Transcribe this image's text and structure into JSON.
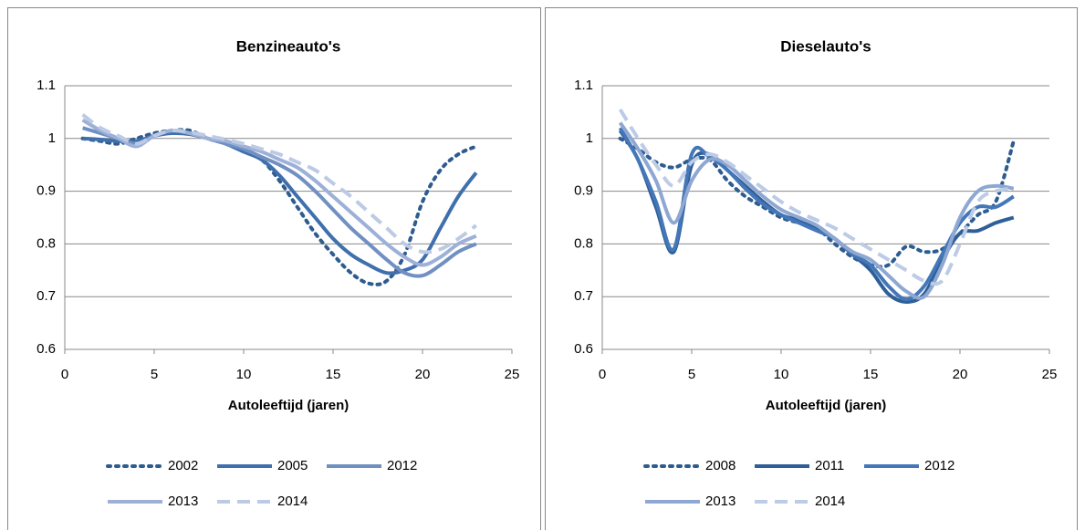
{
  "chart_data": [
    {
      "type": "line",
      "title": "Benzineauto's",
      "xlabel": "Autoleeftijd (jaren)",
      "x": [
        1,
        2,
        3,
        4,
        5,
        6,
        7,
        8,
        9,
        10,
        11,
        12,
        13,
        14,
        15,
        16,
        17,
        18,
        19,
        20,
        21,
        22,
        23
      ],
      "xlim": [
        0,
        25
      ],
      "xticks": [
        0,
        5,
        10,
        15,
        20,
        25
      ],
      "ylim": [
        0.6,
        1.1
      ],
      "yticks": [
        0.6,
        0.7,
        0.8,
        0.9,
        1,
        1.1
      ],
      "grid": true,
      "series": [
        {
          "name": "2002",
          "color": "#2e5c8f",
          "style": "dotted",
          "values": [
            1.0,
            0.995,
            0.99,
            1.0,
            1.01,
            1.015,
            1.015,
            1.0,
            0.99,
            0.975,
            0.96,
            0.92,
            0.87,
            0.82,
            0.78,
            0.745,
            0.725,
            0.73,
            0.78,
            0.88,
            0.94,
            0.97,
            0.985
          ]
        },
        {
          "name": "2005",
          "color": "#3f70ad",
          "style": "solid",
          "values": [
            1.0,
            0.998,
            0.995,
            0.995,
            1.005,
            1.01,
            1.008,
            1.0,
            0.99,
            0.975,
            0.96,
            0.93,
            0.89,
            0.85,
            0.81,
            0.78,
            0.76,
            0.745,
            0.75,
            0.77,
            0.83,
            0.89,
            0.935
          ]
        },
        {
          "name": "2012",
          "color": "#7090c2",
          "style": "solid",
          "values": [
            1.02,
            1.01,
            1.0,
            0.99,
            1.005,
            1.015,
            1.01,
            1.0,
            0.99,
            0.98,
            0.965,
            0.95,
            0.93,
            0.9,
            0.865,
            0.83,
            0.8,
            0.77,
            0.745,
            0.74,
            0.76,
            0.785,
            0.8
          ]
        },
        {
          "name": "2013",
          "color": "#9cb0d8",
          "style": "solid",
          "values": [
            1.035,
            1.015,
            1.0,
            0.985,
            1.005,
            1.015,
            1.01,
            1.0,
            0.995,
            0.985,
            0.975,
            0.96,
            0.945,
            0.92,
            0.89,
            0.86,
            0.83,
            0.8,
            0.775,
            0.76,
            0.775,
            0.8,
            0.815
          ]
        },
        {
          "name": "2014",
          "color": "#bccae4",
          "style": "dashed",
          "values": [
            1.045,
            1.02,
            1.005,
            0.99,
            1.005,
            1.015,
            1.012,
            1.005,
            0.998,
            0.99,
            0.98,
            0.97,
            0.955,
            0.94,
            0.915,
            0.89,
            0.86,
            0.83,
            0.8,
            0.785,
            0.79,
            0.81,
            0.835
          ]
        }
      ]
    },
    {
      "type": "line",
      "title": "Dieselauto's",
      "xlabel": "Autoleeftijd (jaren)",
      "x": [
        1,
        2,
        3,
        4,
        5,
        6,
        7,
        8,
        9,
        10,
        11,
        12,
        13,
        14,
        15,
        16,
        17,
        18,
        19,
        20,
        21,
        22,
        23
      ],
      "xlim": [
        0,
        25
      ],
      "xticks": [
        0,
        5,
        10,
        15,
        20,
        25
      ],
      "ylim": [
        0.6,
        1.1
      ],
      "yticks": [
        0.6,
        0.7,
        0.8,
        0.9,
        1,
        1.1
      ],
      "grid": true,
      "series": [
        {
          "name": "2008",
          "color": "#2e5c8f",
          "style": "dotted",
          "values": [
            1.0,
            0.98,
            0.955,
            0.945,
            0.96,
            0.96,
            0.92,
            0.89,
            0.87,
            0.85,
            0.84,
            0.83,
            0.8,
            0.775,
            0.76,
            0.76,
            0.795,
            0.785,
            0.79,
            0.82,
            0.855,
            0.88,
            0.995
          ]
        },
        {
          "name": "2011",
          "color": "#2f5f99",
          "style": "solid",
          "values": [
            1.015,
            0.96,
            0.87,
            0.785,
            0.95,
            0.97,
            0.94,
            0.91,
            0.88,
            0.855,
            0.845,
            0.83,
            0.81,
            0.78,
            0.75,
            0.705,
            0.69,
            0.705,
            0.77,
            0.82,
            0.825,
            0.84,
            0.85
          ]
        },
        {
          "name": "2012",
          "color": "#4477b8",
          "style": "solid",
          "values": [
            1.02,
            0.96,
            0.88,
            0.79,
            0.97,
            0.965,
            0.94,
            0.905,
            0.875,
            0.855,
            0.84,
            0.825,
            0.81,
            0.78,
            0.76,
            0.72,
            0.695,
            0.72,
            0.78,
            0.84,
            0.87,
            0.87,
            0.89
          ]
        },
        {
          "name": "2013",
          "color": "#8ea7d3",
          "style": "solid",
          "values": [
            1.03,
            0.98,
            0.92,
            0.84,
            0.92,
            0.96,
            0.95,
            0.92,
            0.89,
            0.865,
            0.85,
            0.835,
            0.81,
            0.785,
            0.77,
            0.74,
            0.71,
            0.7,
            0.76,
            0.85,
            0.9,
            0.91,
            0.905
          ]
        },
        {
          "name": "2014",
          "color": "#bccbe6",
          "style": "dashed",
          "values": [
            1.055,
            1.0,
            0.95,
            0.91,
            0.955,
            0.97,
            0.955,
            0.93,
            0.905,
            0.88,
            0.86,
            0.845,
            0.83,
            0.81,
            0.79,
            0.77,
            0.75,
            0.73,
            0.73,
            0.8,
            0.88,
            0.9,
            0.905
          ]
        }
      ]
    }
  ]
}
